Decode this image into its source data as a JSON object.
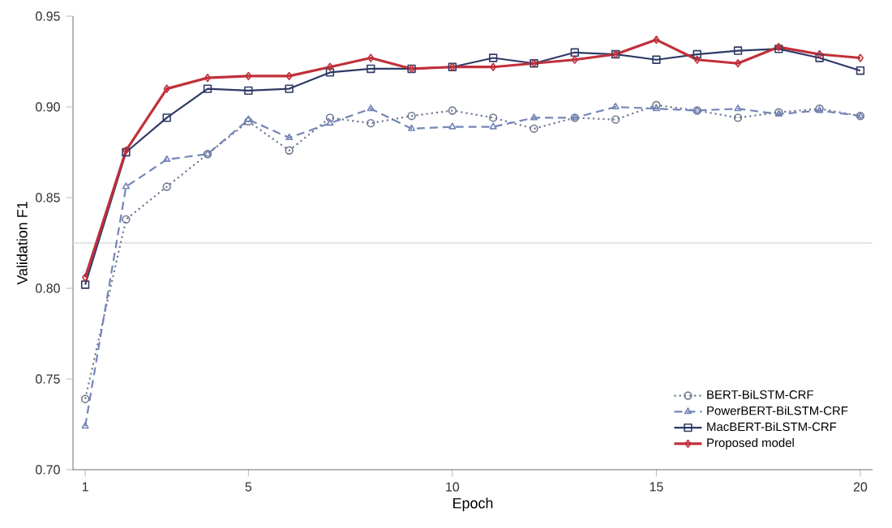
{
  "chart_data": {
    "type": "line",
    "xlabel": "Epoch",
    "ylabel": "Validation F1",
    "x": [
      1,
      2,
      3,
      4,
      5,
      6,
      7,
      8,
      9,
      10,
      11,
      12,
      13,
      14,
      15,
      16,
      17,
      18,
      19,
      20
    ],
    "series": [
      {
        "name": "BERT-BiLSTM-CRF",
        "color": "#6f7891",
        "marker": "circle",
        "line_style": "dotted",
        "values": [
          0.739,
          0.838,
          0.856,
          0.874,
          0.892,
          0.876,
          0.894,
          0.891,
          0.895,
          0.898,
          0.894,
          0.888,
          0.894,
          0.893,
          0.901,
          0.898,
          0.894,
          0.897,
          0.899,
          0.895
        ]
      },
      {
        "name": "PowerBERT-BiLSTM-CRF",
        "color": "#7485b8",
        "marker": "triangle",
        "line_style": "dashed",
        "values": [
          0.724,
          0.856,
          0.871,
          0.874,
          0.893,
          0.883,
          0.891,
          0.899,
          0.888,
          0.889,
          0.889,
          0.894,
          0.894,
          0.9,
          0.899,
          0.898,
          0.899,
          0.896,
          0.898,
          0.895
        ]
      },
      {
        "name": "MacBERT-BiLSTM-CRF",
        "color": "#2e3a66",
        "marker": "square",
        "line_style": "solid",
        "values": [
          0.802,
          0.875,
          0.894,
          0.91,
          0.909,
          0.91,
          0.919,
          0.921,
          0.921,
          0.922,
          0.927,
          0.924,
          0.93,
          0.929,
          0.926,
          0.929,
          0.931,
          0.932,
          0.927,
          0.92
        ]
      },
      {
        "name": "Proposed model",
        "color": "#c0303a",
        "marker": "diamond",
        "line_style": "solid",
        "values": [
          0.806,
          0.876,
          0.91,
          0.916,
          0.917,
          0.917,
          0.922,
          0.927,
          0.921,
          0.922,
          0.922,
          0.924,
          0.926,
          0.929,
          0.937,
          0.926,
          0.924,
          0.933,
          0.929,
          0.927
        ]
      }
    ],
    "xlim": [
      0.7,
      20.3
    ],
    "ylim": [
      0.7,
      0.95
    ],
    "xticks": [
      1,
      5,
      10,
      15,
      20
    ],
    "yticks": [
      {
        "value": 0.7,
        "label": "0.70"
      },
      {
        "value": 0.75,
        "label": "0.75"
      },
      {
        "value": 0.8,
        "label": "0.80"
      },
      {
        "value": 0.85,
        "label": "0.85"
      },
      {
        "value": 0.9,
        "label": "0.90"
      },
      {
        "value": 0.95,
        "label": "0.95"
      }
    ],
    "ref_lines": [
      {
        "axis": "y",
        "value": 0.825,
        "color": "#dcdcdc"
      }
    ],
    "legend": "bottom right",
    "grid": false
  }
}
